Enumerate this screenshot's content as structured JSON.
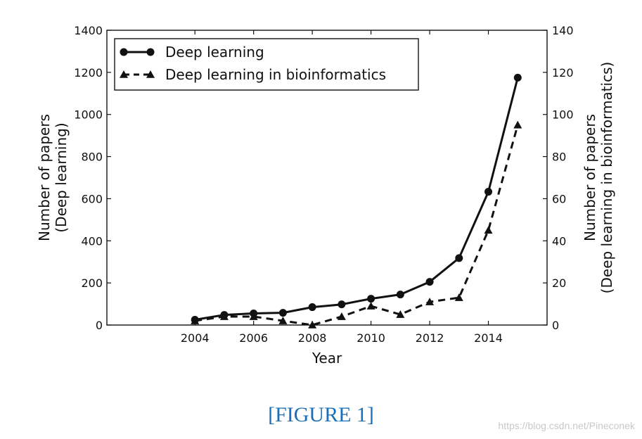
{
  "chart_data": {
    "type": "line",
    "x": [
      2004,
      2005,
      2006,
      2007,
      2008,
      2009,
      2010,
      2011,
      2012,
      2013,
      2014,
      2015
    ],
    "xlabel": "Year",
    "xlim": [
      2001,
      2016
    ],
    "xticks": [
      2004,
      2006,
      2008,
      2010,
      2012,
      2014
    ],
    "ylabel_left": [
      "Number of papers",
      "(Deep learning)"
    ],
    "ylim_left": [
      0,
      1400
    ],
    "yticks_left": [
      0,
      200,
      400,
      600,
      800,
      1000,
      1200,
      1400
    ],
    "ylabel_right": [
      "Number of papers",
      "(Deep learning in bioinformatics)"
    ],
    "ylim_right": [
      0,
      140
    ],
    "yticks_right": [
      0,
      20,
      40,
      60,
      80,
      100,
      120,
      140
    ],
    "grid": false,
    "legend_position": "top-left",
    "series": [
      {
        "name": "Deep learning",
        "axis": "left",
        "line_style": "solid",
        "marker": "circle",
        "color": "#111111",
        "values": [
          25,
          48,
          55,
          58,
          85,
          98,
          125,
          145,
          205,
          318,
          633,
          1175
        ]
      },
      {
        "name": "Deep learning in bioinformatics",
        "axis": "right",
        "line_style": "dashed",
        "marker": "triangle",
        "color": "#111111",
        "values": [
          2,
          4,
          4,
          2,
          0,
          4,
          9,
          5,
          11,
          13,
          45,
          95
        ]
      }
    ]
  },
  "caption": "[FIGURE 1]",
  "watermark": "https://blog.csdn.net/Pineconek"
}
